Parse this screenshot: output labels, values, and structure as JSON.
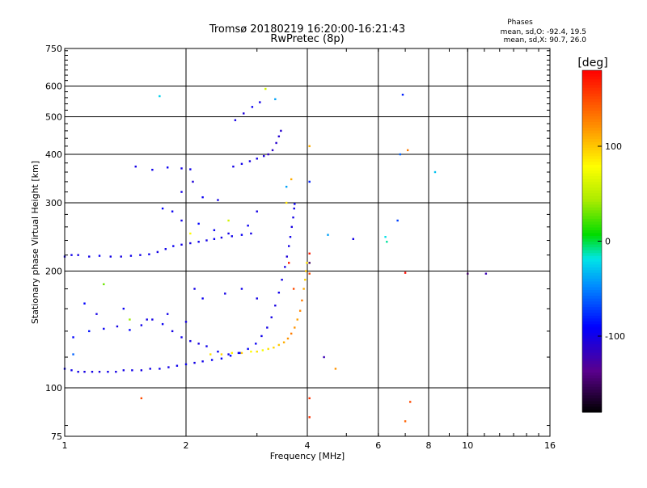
{
  "chart_data": {
    "type": "scatter",
    "title": "Tromsø 20180219 16:20:00-16:21:43",
    "subtitle": "RwPretec (8p)",
    "xlabel": "Frequency [MHz]",
    "ylabel": "Stationary phase Virtual Height [km]",
    "x_scale": "log",
    "y_scale": "log",
    "xlim": [
      1,
      16
    ],
    "ylim": [
      75,
      750
    ],
    "x_ticks": [
      1,
      2,
      4,
      6,
      8,
      10,
      16
    ],
    "y_ticks": [
      75,
      100,
      200,
      300,
      400,
      500,
      600,
      750
    ],
    "x_grid": [
      2,
      4,
      6,
      8,
      10
    ],
    "y_grid": [
      100,
      200,
      300,
      400,
      500,
      600
    ],
    "stats": {
      "heading": "Phases",
      "line1": "mean, sd,O: -92.4, 19.5",
      "line2": "mean, sd,X:  90.7, 26.0"
    },
    "colorbar": {
      "label": "[deg]",
      "range": [
        -180,
        180
      ],
      "ticks": [
        100,
        0,
        -100
      ]
    },
    "series": [
      {
        "description": "O-mode F-layer trace",
        "points": [
          [
            1.0,
            112,
            -95
          ],
          [
            1.04,
            111,
            -98
          ],
          [
            1.08,
            110,
            -100
          ],
          [
            1.12,
            110,
            -102
          ],
          [
            1.17,
            110,
            -100
          ],
          [
            1.22,
            110,
            -103
          ],
          [
            1.28,
            110,
            -98
          ],
          [
            1.34,
            110,
            -101
          ],
          [
            1.4,
            111,
            -100
          ],
          [
            1.47,
            111,
            -99
          ],
          [
            1.55,
            111,
            -102
          ],
          [
            1.63,
            112,
            -100
          ],
          [
            1.72,
            112,
            -98
          ],
          [
            1.81,
            113,
            -100
          ],
          [
            1.9,
            114,
            -97
          ],
          [
            2.0,
            115,
            -95
          ],
          [
            2.1,
            116,
            -100
          ],
          [
            2.2,
            117,
            -98
          ],
          [
            2.32,
            118,
            -95
          ],
          [
            2.45,
            119,
            -92
          ],
          [
            2.58,
            121,
            -90
          ],
          [
            2.72,
            123,
            -88
          ],
          [
            2.85,
            126,
            -92
          ],
          [
            2.98,
            130,
            -95
          ],
          [
            3.08,
            136,
            -98
          ],
          [
            3.18,
            143,
            -100
          ],
          [
            3.26,
            152,
            -100
          ],
          [
            3.33,
            163,
            -102
          ],
          [
            3.4,
            176,
            -98
          ],
          [
            3.46,
            190,
            -100
          ],
          [
            3.52,
            205,
            -102
          ],
          [
            3.56,
            218,
            -105
          ],
          [
            3.6,
            232,
            -100
          ],
          [
            3.63,
            245,
            -98
          ],
          [
            3.66,
            260,
            -102
          ],
          [
            3.69,
            275,
            -100
          ],
          [
            3.71,
            290,
            -98
          ],
          [
            3.72,
            298,
            -95
          ],
          [
            3.2,
            400,
            -115
          ],
          [
            3.28,
            410,
            -112
          ],
          [
            3.35,
            428,
            -110
          ],
          [
            3.4,
            445,
            -108
          ],
          [
            3.44,
            460,
            -110
          ],
          [
            2.62,
            372,
            -100
          ],
          [
            2.75,
            378,
            -98
          ],
          [
            2.88,
            384,
            -102
          ],
          [
            3.0,
            390,
            -100
          ],
          [
            3.12,
            396,
            -105
          ],
          [
            1.5,
            372,
            -100
          ],
          [
            1.65,
            365,
            -98
          ],
          [
            1.8,
            370,
            -95
          ],
          [
            1.95,
            368,
            -100
          ],
          [
            2.05,
            366,
            -98
          ]
        ]
      },
      {
        "description": "X-mode F-layer trace",
        "points": [
          [
            2.3,
            122,
            90
          ],
          [
            2.45,
            122,
            95
          ],
          [
            2.6,
            123,
            85
          ],
          [
            2.75,
            123,
            100
          ],
          [
            2.9,
            124,
            80
          ],
          [
            3.0,
            124,
            90
          ],
          [
            3.1,
            125,
            75
          ],
          [
            3.2,
            126,
            90
          ],
          [
            3.3,
            127,
            95
          ],
          [
            3.4,
            129,
            100
          ],
          [
            3.5,
            131,
            110
          ],
          [
            3.58,
            134,
            120
          ],
          [
            3.65,
            138,
            130
          ],
          [
            3.72,
            143,
            120
          ],
          [
            3.78,
            150,
            115
          ],
          [
            3.84,
            158,
            125
          ],
          [
            3.88,
            168,
            130
          ],
          [
            3.92,
            180,
            110
          ],
          [
            3.95,
            190,
            95
          ],
          [
            3.97,
            200,
            100
          ],
          [
            3.99,
            210,
            90
          ]
        ]
      },
      {
        "description": "O-mode secondary traces",
        "points": [
          [
            1.0,
            218,
            -100
          ],
          [
            1.04,
            220,
            -98
          ],
          [
            1.08,
            220,
            -102
          ],
          [
            1.15,
            218,
            -100
          ],
          [
            1.22,
            219,
            -95
          ],
          [
            1.3,
            218,
            -100
          ],
          [
            1.38,
            218,
            -102
          ],
          [
            1.46,
            219,
            -98
          ],
          [
            1.54,
            220,
            -100
          ],
          [
            1.62,
            221,
            -96
          ],
          [
            1.7,
            224,
            -100
          ],
          [
            1.78,
            228,
            -98
          ],
          [
            1.86,
            232,
            -95
          ],
          [
            1.95,
            234,
            -100
          ],
          [
            2.05,
            236,
            -102
          ],
          [
            2.15,
            238,
            -98
          ],
          [
            2.25,
            240,
            -100
          ],
          [
            2.35,
            242,
            -96
          ],
          [
            2.45,
            244,
            -100
          ],
          [
            2.6,
            246,
            -98
          ],
          [
            2.75,
            248,
            -95
          ],
          [
            2.9,
            250,
            -100
          ],
          [
            1.05,
            135,
            -90
          ],
          [
            1.15,
            140,
            -85
          ],
          [
            1.25,
            142,
            -95
          ],
          [
            1.35,
            144,
            -100
          ],
          [
            1.45,
            141,
            -90
          ],
          [
            1.55,
            145,
            -98
          ],
          [
            1.65,
            150,
            -100
          ],
          [
            1.75,
            146,
            -95
          ],
          [
            1.85,
            140,
            -100
          ],
          [
            1.95,
            135,
            -98
          ],
          [
            2.05,
            132,
            -100
          ],
          [
            2.15,
            130,
            -102
          ],
          [
            2.25,
            128,
            -98
          ],
          [
            2.4,
            124,
            -95
          ],
          [
            2.55,
            122,
            -100
          ],
          [
            2.7,
            123,
            -98
          ],
          [
            1.75,
            290,
            -90
          ],
          [
            1.85,
            285,
            -95
          ],
          [
            1.95,
            270,
            -100
          ],
          [
            2.15,
            265,
            -90
          ],
          [
            2.35,
            255,
            -95
          ],
          [
            2.55,
            250,
            -100
          ],
          [
            2.85,
            262,
            -95
          ],
          [
            3.0,
            285,
            -100
          ],
          [
            1.2,
            155,
            -100
          ],
          [
            1.4,
            160,
            -95
          ],
          [
            1.6,
            150,
            -100
          ],
          [
            1.8,
            155,
            -98
          ],
          [
            2.0,
            148,
            -100
          ],
          [
            2.2,
            170,
            -95
          ],
          [
            2.5,
            175,
            -100
          ],
          [
            2.75,
            180,
            -98
          ],
          [
            3.0,
            170,
            -100
          ],
          [
            1.95,
            320,
            -100
          ],
          [
            2.08,
            340,
            -105
          ],
          [
            2.2,
            310,
            -95
          ],
          [
            2.4,
            305,
            -100
          ],
          [
            2.65,
            490,
            -100
          ],
          [
            2.78,
            510,
            -105
          ],
          [
            2.92,
            530,
            -95
          ],
          [
            3.05,
            545,
            -100
          ]
        ]
      },
      {
        "description": "Scattered points",
        "points": [
          [
            1.72,
            565,
            -25
          ],
          [
            3.15,
            590,
            60
          ],
          [
            3.33,
            555,
            -40
          ],
          [
            6.9,
            570,
            -80
          ],
          [
            6.8,
            400,
            -60
          ],
          [
            7.1,
            410,
            130
          ],
          [
            8.3,
            360,
            -30
          ],
          [
            4.05,
            420,
            110
          ],
          [
            4.05,
            340,
            -80
          ],
          [
            6.7,
            270,
            -70
          ],
          [
            4.5,
            248,
            -40
          ],
          [
            5.2,
            242,
            -100
          ],
          [
            6.25,
            245,
            -20
          ],
          [
            6.3,
            238,
            -10
          ],
          [
            4.05,
            222,
            170
          ],
          [
            4.05,
            210,
            -150
          ],
          [
            7.0,
            198,
            175
          ],
          [
            10.0,
            197,
            -150
          ],
          [
            11.1,
            197,
            -120
          ],
          [
            1.55,
            94,
            150
          ],
          [
            4.05,
            94,
            160
          ],
          [
            7.2,
            92,
            150
          ],
          [
            4.05,
            84,
            160
          ],
          [
            7.0,
            82,
            140
          ],
          [
            4.4,
            120,
            -120
          ],
          [
            4.7,
            112,
            120
          ],
          [
            1.05,
            122,
            -60
          ],
          [
            1.25,
            185,
            30
          ],
          [
            1.12,
            165,
            -90
          ],
          [
            1.45,
            150,
            40
          ],
          [
            2.05,
            250,
            80
          ],
          [
            2.55,
            270,
            60
          ],
          [
            2.1,
            180,
            -100
          ],
          [
            3.55,
            300,
            90
          ],
          [
            3.55,
            330,
            -40
          ],
          [
            3.65,
            345,
            110
          ],
          [
            4.05,
            197,
            150
          ],
          [
            3.7,
            180,
            150
          ],
          [
            3.6,
            210,
            170
          ]
        ]
      }
    ]
  }
}
